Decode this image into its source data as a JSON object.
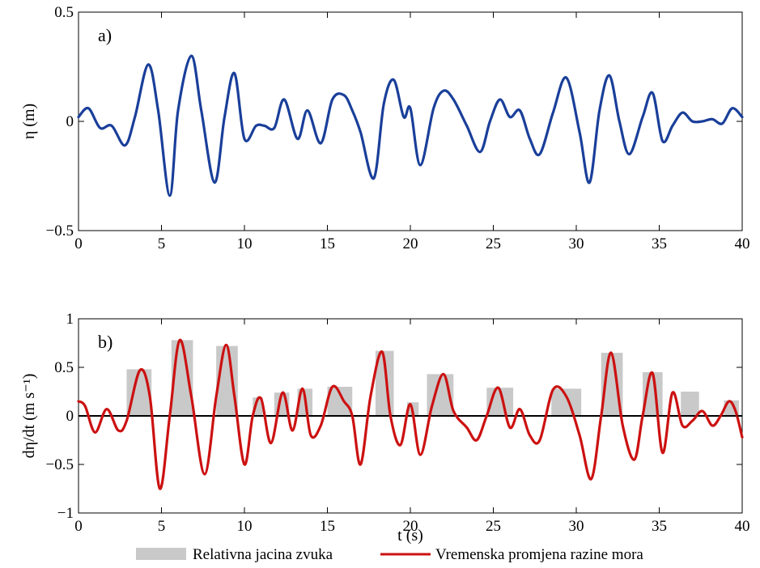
{
  "chart_data": [
    {
      "type": "line",
      "panel_label": "a)",
      "xlabel": "",
      "ylabel": "η (m)",
      "xlim": [
        0,
        40
      ],
      "ylim": [
        -0.5,
        0.5
      ],
      "xticks": [
        "0",
        "5",
        "10",
        "15",
        "20",
        "25",
        "30",
        "35",
        "40"
      ],
      "yticks": [
        "−0.5",
        "0",
        "0.5"
      ],
      "grid": false,
      "series": [
        {
          "color": "#1a3f9a",
          "x": [
            0,
            0.6,
            1.3,
            2.0,
            2.8,
            3.4,
            4.2,
            4.8,
            5.5,
            6.0,
            6.8,
            7.4,
            8.2,
            8.8,
            9.4,
            10.0,
            10.7,
            11.2,
            11.8,
            12.4,
            13.2,
            13.8,
            14.6,
            15.3,
            16.0,
            16.5,
            17.0,
            17.8,
            18.4,
            19.0,
            19.6,
            20.0,
            20.6,
            21.4,
            22.0,
            22.6,
            23.4,
            24.2,
            24.8,
            25.4,
            26.0,
            26.6,
            27.2,
            27.8,
            28.6,
            29.4,
            30.2,
            30.8,
            31.4,
            32.0,
            32.6,
            33.2,
            34.0,
            34.6,
            35.2,
            35.8,
            36.4,
            37.0,
            37.6,
            38.2,
            38.8,
            39.4,
            40.0
          ],
          "y": [
            0.02,
            0.06,
            -0.03,
            -0.02,
            -0.11,
            0.02,
            0.26,
            0.05,
            -0.34,
            0.05,
            0.3,
            0.05,
            -0.28,
            0.02,
            0.22,
            -0.08,
            -0.02,
            -0.02,
            -0.03,
            0.1,
            -0.08,
            0.05,
            -0.1,
            0.1,
            0.12,
            0.05,
            -0.05,
            -0.26,
            0.08,
            0.19,
            0.02,
            0.06,
            -0.2,
            0.06,
            0.14,
            0.1,
            -0.02,
            -0.14,
            0.0,
            0.1,
            0.02,
            0.05,
            -0.08,
            -0.15,
            0.04,
            0.2,
            -0.05,
            -0.28,
            0.05,
            0.21,
            0.0,
            -0.15,
            0.02,
            0.13,
            -0.09,
            -0.02,
            0.04,
            0.0,
            0.0,
            0.01,
            -0.01,
            0.06,
            0.02
          ]
        }
      ]
    },
    {
      "type": "bar+line",
      "panel_label": "b)",
      "xlabel": "t (s)",
      "ylabel": "dη/dt (m s⁻¹)",
      "xlim": [
        0,
        40
      ],
      "ylim": [
        -1,
        1
      ],
      "xticks": [
        "0",
        "5",
        "10",
        "15",
        "20",
        "25",
        "30",
        "35",
        "40"
      ],
      "yticks": [
        "−1",
        "−0.5",
        "0",
        "0.5",
        "1"
      ],
      "grid": false,
      "zero_line": true,
      "bars": {
        "name": "Relativna jacina zvuka",
        "color": "#c9c9c9",
        "x_start": [
          2.9,
          5.6,
          8.3,
          10.5,
          11.8,
          13.2,
          15.0,
          17.9,
          19.8,
          21.0,
          24.6,
          28.5,
          31.5,
          34.0,
          36.3,
          38.9
        ],
        "x_end": [
          4.4,
          6.9,
          9.6,
          11.1,
          12.7,
          14.1,
          16.5,
          19.0,
          20.5,
          22.6,
          26.2,
          30.3,
          32.8,
          35.2,
          37.4,
          39.8
        ],
        "values": [
          0.48,
          0.78,
          0.72,
          0.19,
          0.24,
          0.28,
          0.3,
          0.67,
          0.14,
          0.43,
          0.29,
          0.28,
          0.65,
          0.45,
          0.25,
          0.16
        ]
      },
      "series": [
        {
          "name": "Vremenska promjena razine mora",
          "color": "#cc1111",
          "x": [
            0,
            0.4,
            1.0,
            1.7,
            2.4,
            2.9,
            3.7,
            4.3,
            4.9,
            5.5,
            6.1,
            6.8,
            7.6,
            8.3,
            8.9,
            9.4,
            10.0,
            10.5,
            11.0,
            11.6,
            12.3,
            12.9,
            13.5,
            14.0,
            14.6,
            15.3,
            16.0,
            16.5,
            17.0,
            17.6,
            18.3,
            18.8,
            19.4,
            20.0,
            20.6,
            21.3,
            22.0,
            22.6,
            23.4,
            24.0,
            24.6,
            25.3,
            26.0,
            26.6,
            27.2,
            27.8,
            28.6,
            29.4,
            30.2,
            30.9,
            31.5,
            32.1,
            32.8,
            33.5,
            34.0,
            34.6,
            35.2,
            35.8,
            36.4,
            37.0,
            37.6,
            38.2,
            38.7,
            39.2,
            39.6,
            40.0
          ],
          "y": [
            0.15,
            0.1,
            -0.17,
            0.07,
            -0.15,
            -0.05,
            0.47,
            0.2,
            -0.75,
            0.0,
            0.78,
            0.2,
            -0.6,
            0.2,
            0.73,
            0.2,
            -0.5,
            0.0,
            0.18,
            -0.28,
            0.24,
            -0.15,
            0.28,
            -0.2,
            -0.1,
            0.3,
            0.15,
            0.0,
            -0.5,
            0.2,
            0.66,
            0.0,
            -0.3,
            0.12,
            -0.4,
            0.1,
            0.43,
            0.05,
            -0.12,
            -0.25,
            0.0,
            0.29,
            -0.12,
            0.07,
            -0.2,
            -0.25,
            0.27,
            0.2,
            -0.2,
            -0.65,
            0.0,
            0.65,
            -0.1,
            -0.45,
            0.0,
            0.44,
            -0.38,
            0.24,
            -0.1,
            -0.05,
            0.05,
            -0.1,
            0.0,
            0.15,
            0.05,
            -0.22
          ]
        }
      ]
    }
  ],
  "legend": {
    "position": "bottom-center",
    "bar_label": "Relativna jacina zvuka",
    "line_label": "Vremenska promjena razine mora"
  }
}
